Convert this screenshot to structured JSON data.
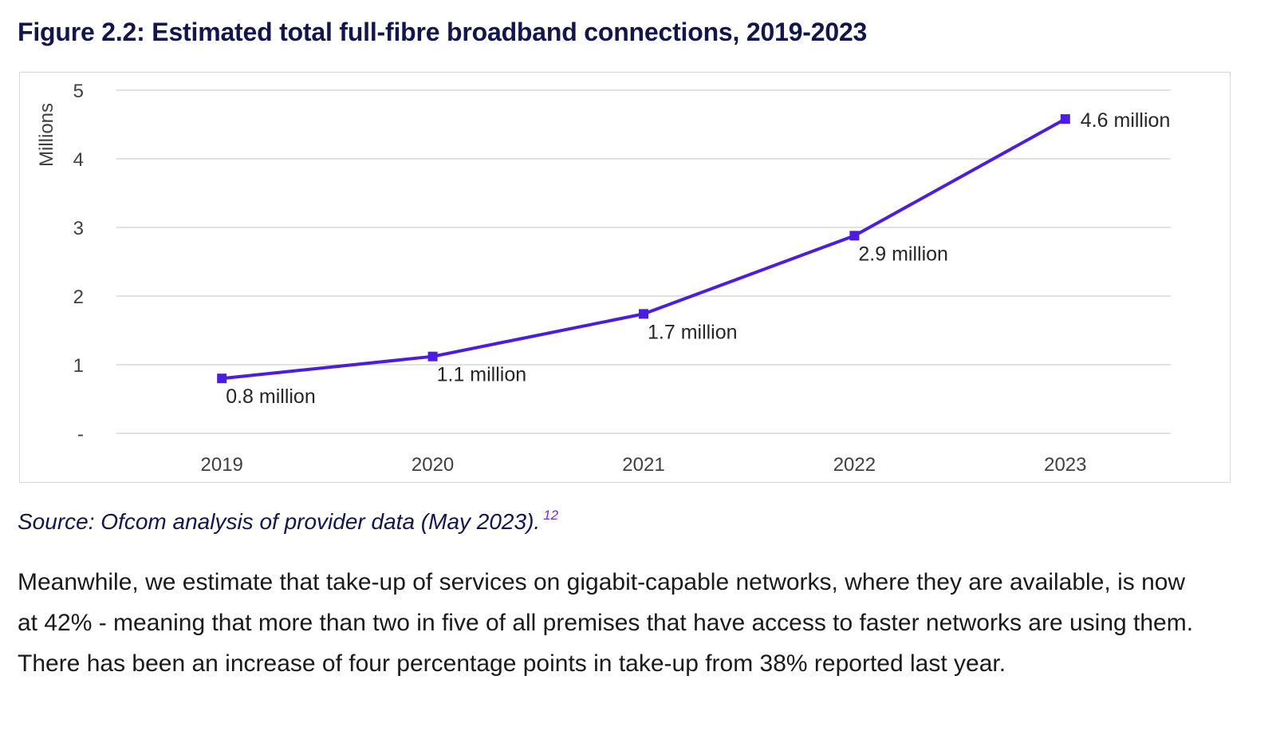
{
  "figure": {
    "title": "Figure 2.2: Estimated total full-fibre broadband connections, 2019-2023"
  },
  "chart_data": {
    "type": "line",
    "categories": [
      "2019",
      "2020",
      "2021",
      "2022",
      "2023"
    ],
    "series": [
      {
        "name": "",
        "values": [
          0.8,
          1.12,
          1.74,
          2.88,
          4.58
        ],
        "color": "#4b1de0",
        "data_labels": [
          "0.8 million",
          "1.1 million",
          "1.7 million",
          "2.9 million",
          "4.6 million"
        ]
      }
    ],
    "ylabel": "Millions",
    "xlabel": "",
    "ylim": [
      0,
      5
    ],
    "y_tick_labels": [
      "-",
      "1",
      "2",
      "3",
      "4",
      "5"
    ],
    "grid": true,
    "legend": "none",
    "gridline_color": "#d9d9d9",
    "axis_text_color": "#404040"
  },
  "source": {
    "text": "Source: Ofcom analysis of provider data (May 2023).",
    "footnote": "12"
  },
  "body": {
    "paragraph": "Meanwhile, we estimate that take-up of services on gigabit-capable networks, where they are available, is now at 42% - meaning that more than two in five of all premises that have access to faster networks are using them. There has been an increase of four percentage points in take-up from 38% reported last year."
  }
}
